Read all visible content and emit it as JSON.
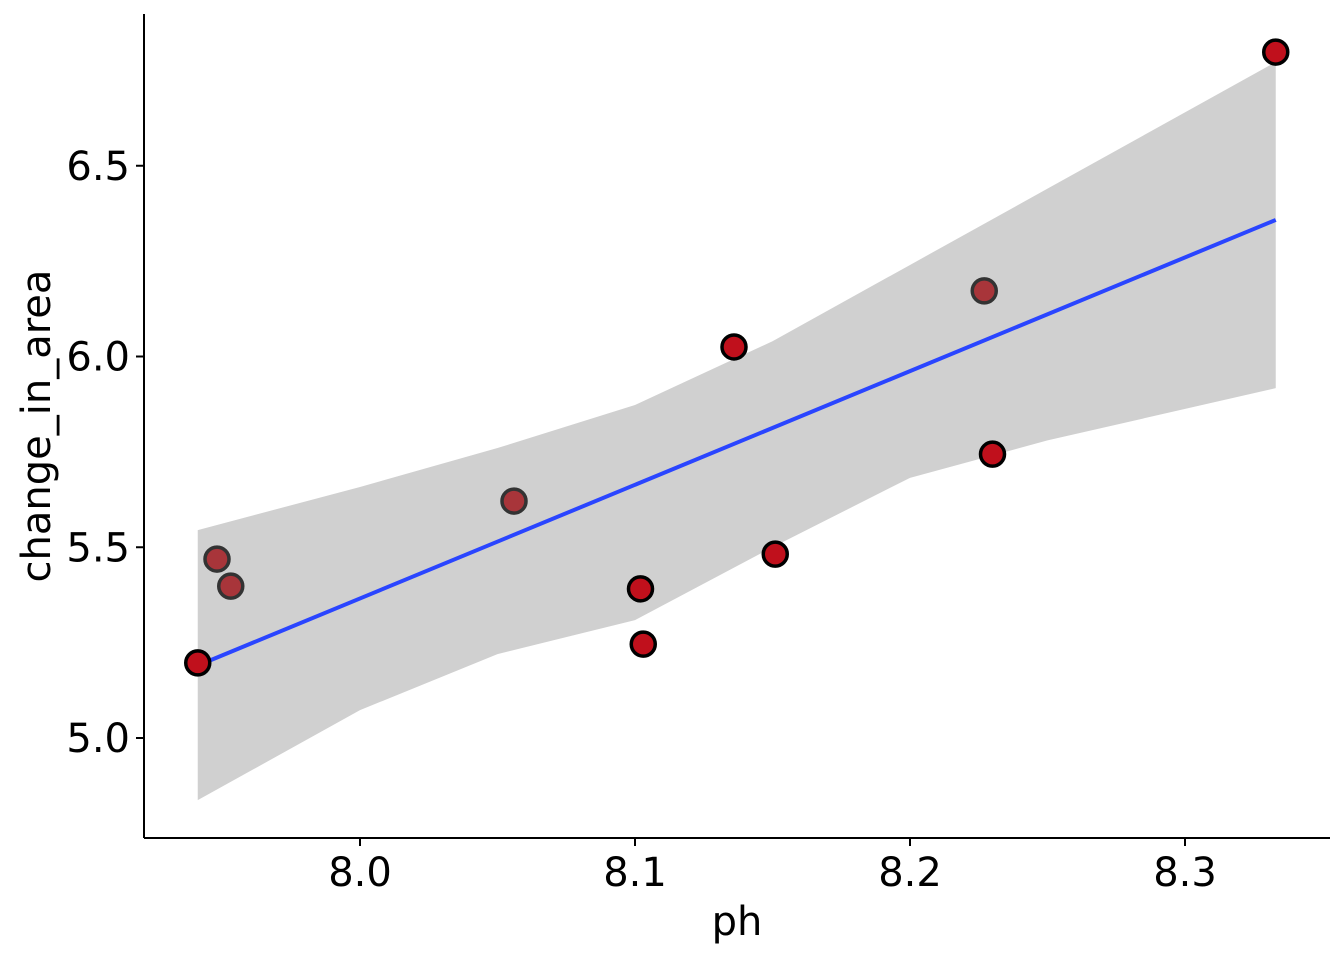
{
  "chart_data": {
    "type": "scatter",
    "xlabel": "ph",
    "ylabel": "change_in_area",
    "xlim": [
      7.9225,
      8.3535
    ],
    "ylim": [
      4.73,
      6.89
    ],
    "x_ticks": [
      {
        "value": 8.0,
        "label": "8.0"
      },
      {
        "value": 8.1,
        "label": "8.1"
      },
      {
        "value": 8.2,
        "label": "8.2"
      },
      {
        "value": 8.3,
        "label": "8.3"
      }
    ],
    "y_ticks": [
      {
        "value": 5.0,
        "label": "5.0"
      },
      {
        "value": 5.5,
        "label": "5.5"
      },
      {
        "value": 6.0,
        "label": "6.0"
      },
      {
        "value": 6.5,
        "label": "6.5"
      }
    ],
    "grid": false,
    "points": [
      {
        "x": 7.941,
        "y": 5.197,
        "faded": false
      },
      {
        "x": 7.948,
        "y": 5.469,
        "faded": true
      },
      {
        "x": 7.953,
        "y": 5.398,
        "faded": true
      },
      {
        "x": 8.056,
        "y": 5.621,
        "faded": true
      },
      {
        "x": 8.102,
        "y": 5.391,
        "faded": false
      },
      {
        "x": 8.103,
        "y": 5.246,
        "faded": false
      },
      {
        "x": 8.136,
        "y": 6.025,
        "faded": false
      },
      {
        "x": 8.151,
        "y": 5.482,
        "faded": false
      },
      {
        "x": 8.227,
        "y": 6.172,
        "faded": true
      },
      {
        "x": 8.23,
        "y": 5.744,
        "faded": false
      },
      {
        "x": 8.333,
        "y": 6.798,
        "faded": false
      }
    ],
    "fit_line": {
      "x": [
        7.941,
        8.333
      ],
      "y": [
        5.19,
        6.358
      ]
    },
    "confidence_band": {
      "x": [
        7.941,
        8.0,
        8.05,
        8.1,
        8.15,
        8.2,
        8.25,
        8.333
      ],
      "upper": [
        5.545,
        5.658,
        5.76,
        5.873,
        6.04,
        6.24,
        6.44,
        6.772
      ],
      "lower": [
        4.837,
        5.073,
        5.22,
        5.309,
        5.5,
        5.682,
        5.78,
        5.917
      ]
    },
    "colors": {
      "point_fill": "#c0101c",
      "faded_fill": "#a8353a",
      "line": "#2a45ff",
      "band": "#d0d0d0"
    }
  }
}
